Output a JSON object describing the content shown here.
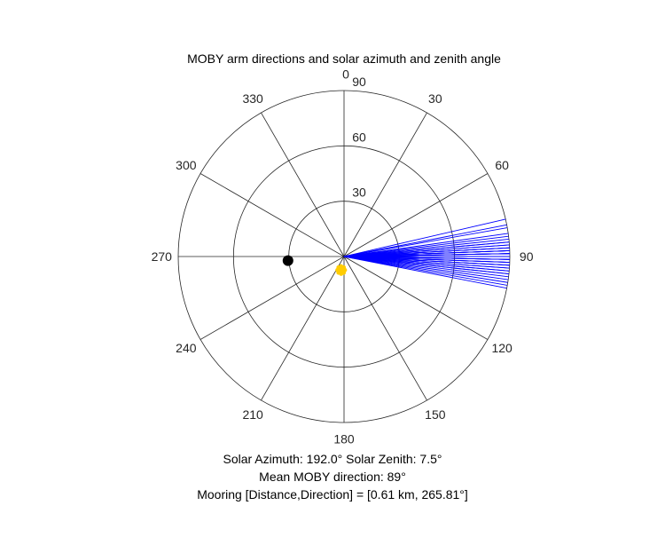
{
  "chart_data": {
    "type": "polar",
    "title": "MOBY arm directions and solar azimuth and zenith angle",
    "angle_ticks": [
      {
        "deg": 0,
        "label": "0"
      },
      {
        "deg": 30,
        "label": "30"
      },
      {
        "deg": 60,
        "label": "60"
      },
      {
        "deg": 90,
        "label": "90"
      },
      {
        "deg": 120,
        "label": "120"
      },
      {
        "deg": 150,
        "label": "150"
      },
      {
        "deg": 180,
        "label": "180"
      },
      {
        "deg": 210,
        "label": "210"
      },
      {
        "deg": 240,
        "label": "240"
      },
      {
        "deg": 270,
        "label": "270"
      },
      {
        "deg": 300,
        "label": "300"
      },
      {
        "deg": 330,
        "label": "330"
      }
    ],
    "radial_ticks": [
      {
        "value": 30,
        "label": "30"
      },
      {
        "value": 60,
        "label": "60"
      },
      {
        "value": 90,
        "label": "90"
      }
    ],
    "rlim": [
      0,
      90
    ],
    "angle_zero": "top",
    "angle_direction": "clockwise",
    "grid": true,
    "arm_directions": {
      "color": "#0000ff",
      "radius": 90,
      "directions_deg": [
        77,
        79,
        80,
        82,
        83,
        84,
        85,
        85,
        86,
        86,
        87,
        87,
        87,
        88,
        88,
        88,
        88,
        89,
        89,
        89,
        89,
        89,
        90,
        90,
        90,
        90,
        91,
        91,
        91,
        91,
        92,
        92,
        92,
        93,
        93,
        93,
        94,
        94,
        95,
        95,
        96,
        96,
        97,
        98,
        99,
        100,
        101
      ]
    },
    "mooring": {
      "direction_deg": 265.81,
      "radius": 30.5,
      "color": "#000000"
    },
    "sun": {
      "azimuth_deg": 192.0,
      "zenith_deg": 7.5,
      "color": "#ffcc00"
    },
    "annotations": {
      "solar": "Solar Azimuth: 192.0°    Solar Zenith: 7.5°",
      "mean_direction": "Mean MOBY direction: 89°",
      "mooring": "Mooring [Distance,Direction] = [0.61 km, 265.81°]"
    }
  }
}
